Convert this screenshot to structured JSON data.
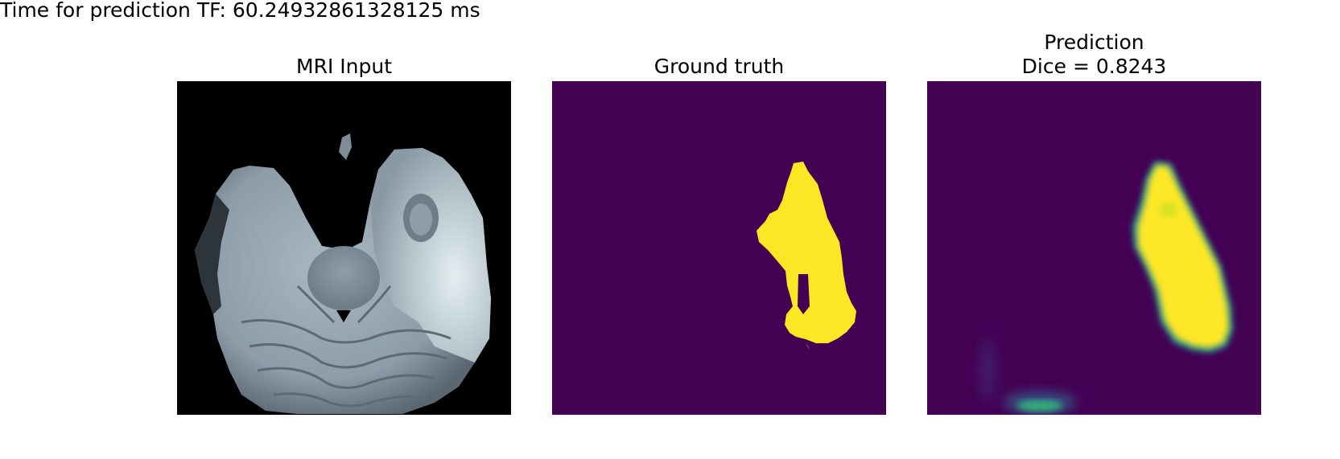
{
  "figure": {
    "suptitle": "Time for prediction TF: 60.24932861328125 ms"
  },
  "panels": [
    {
      "title_lines": [
        "MRI Input"
      ],
      "colormap": "bone",
      "background": "#000000"
    },
    {
      "title_lines": [
        "Ground truth"
      ],
      "colormap": "viridis",
      "background": "#440154",
      "mask_color": "#fde725"
    },
    {
      "title_lines": [
        "Prediction",
        "Dice = 0.8243"
      ],
      "colormap": "viridis",
      "background": "#440154",
      "mask_color": "#fde725",
      "edge_color": "#21918c"
    }
  ]
}
